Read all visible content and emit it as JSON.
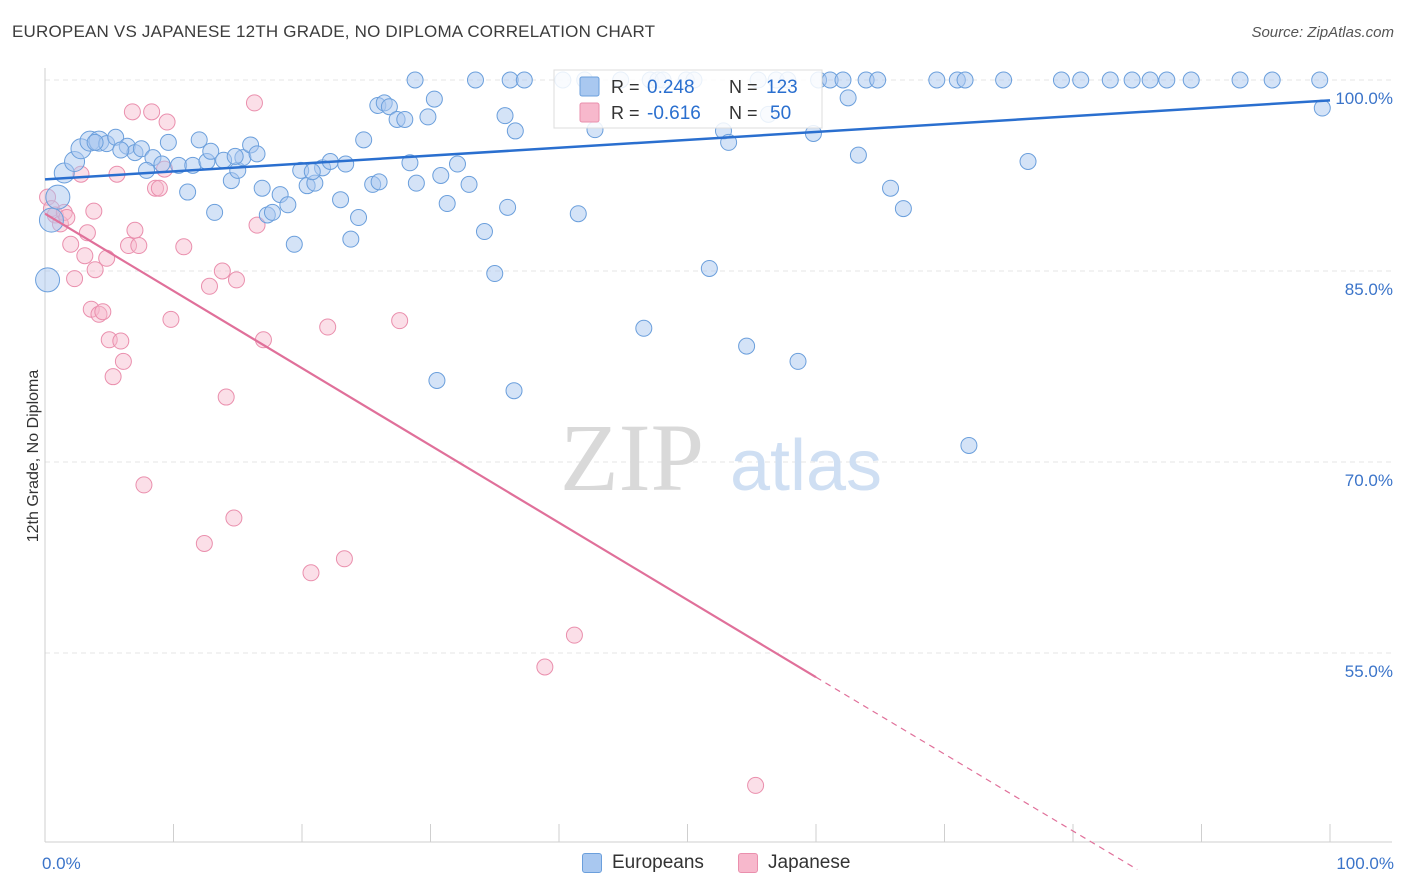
{
  "header": {
    "title": "EUROPEAN VS JAPANESE 12TH GRADE, NO DIPLOMA CORRELATION CHART",
    "source": "Source: ZipAtlas.com"
  },
  "watermark": {
    "zip": "ZIP",
    "atlas": "atlas"
  },
  "colors": {
    "blue_fill": "#a9c8f0",
    "blue_stroke": "#6b9fdc",
    "blue_line": "#2a6fcf",
    "pink_fill": "#f7b8cc",
    "pink_stroke": "#ea8fad",
    "pink_line": "#e0709a",
    "tick_label": "#3b74c9",
    "grid": "#e4e4e4"
  },
  "legend_box": {
    "rows": [
      {
        "r_label": "R =",
        "r_value": "0.248",
        "n_label": "N =",
        "n_value": "123",
        "series": "europeans"
      },
      {
        "r_label": "R =",
        "r_value": "-0.616",
        "n_label": "N =",
        "n_value": "50",
        "series": "japanese"
      }
    ]
  },
  "chart_data": {
    "type": "scatter",
    "ylabel": "12th Grade, No Diploma",
    "xlabel": "",
    "xlim": [
      0,
      100
    ],
    "ylim": [
      40,
      102
    ],
    "y_ticks": [
      {
        "value": 100,
        "label": "100.0%"
      },
      {
        "value": 85,
        "label": "85.0%"
      },
      {
        "value": 70,
        "label": "70.0%"
      },
      {
        "value": 55,
        "label": "55.0%"
      }
    ],
    "x_tick_labels": {
      "left": "0.0%",
      "right": "100.0%"
    },
    "grid": "horizontal dashed",
    "legend_placement": "top-center",
    "series": [
      {
        "name": "Europeans",
        "key": "europeans",
        "R": 0.248,
        "N": 123,
        "trend": {
          "x": [
            0,
            100
          ],
          "y": [
            92.2,
            98.4
          ]
        },
        "points": [
          [
            0.2,
            84.3
          ],
          [
            0.5,
            89.0
          ],
          [
            1.0,
            90.8
          ],
          [
            1.5,
            92.7
          ],
          [
            2.3,
            93.6
          ],
          [
            2.8,
            94.6
          ],
          [
            3.5,
            95.2
          ],
          [
            4.2,
            95.2
          ],
          [
            4.8,
            95.0
          ],
          [
            5.5,
            95.5
          ],
          [
            6.4,
            94.8
          ],
          [
            7.0,
            94.3
          ],
          [
            7.5,
            94.6
          ],
          [
            8.4,
            93.9
          ],
          [
            9.1,
            93.4
          ],
          [
            9.6,
            95.1
          ],
          [
            10.4,
            93.3
          ],
          [
            11.1,
            91.2
          ],
          [
            11.5,
            93.3
          ],
          [
            12.0,
            95.3
          ],
          [
            12.6,
            93.6
          ],
          [
            12.9,
            94.4
          ],
          [
            13.2,
            89.6
          ],
          [
            13.9,
            93.7
          ],
          [
            14.5,
            92.1
          ],
          [
            15.0,
            92.9
          ],
          [
            15.4,
            93.9
          ],
          [
            16.0,
            94.9
          ],
          [
            16.5,
            94.2
          ],
          [
            16.9,
            91.5
          ],
          [
            17.3,
            89.4
          ],
          [
            17.7,
            89.6
          ],
          [
            18.3,
            91.0
          ],
          [
            18.9,
            90.2
          ],
          [
            19.4,
            87.1
          ],
          [
            19.9,
            92.9
          ],
          [
            20.4,
            91.7
          ],
          [
            21.0,
            91.9
          ],
          [
            21.6,
            93.1
          ],
          [
            22.2,
            93.6
          ],
          [
            23.0,
            90.6
          ],
          [
            23.4,
            93.4
          ],
          [
            23.8,
            87.5
          ],
          [
            24.4,
            89.2
          ],
          [
            24.8,
            95.3
          ],
          [
            25.5,
            91.8
          ],
          [
            25.9,
            98.0
          ],
          [
            26.4,
            98.2
          ],
          [
            26.8,
            97.9
          ],
          [
            27.4,
            96.9
          ],
          [
            28.0,
            96.9
          ],
          [
            28.4,
            93.5
          ],
          [
            28.9,
            91.9
          ],
          [
            29.8,
            97.1
          ],
          [
            30.3,
            98.5
          ],
          [
            30.8,
            92.5
          ],
          [
            31.3,
            90.3
          ],
          [
            32.1,
            93.4
          ],
          [
            33.0,
            91.8
          ],
          [
            34.2,
            88.1
          ],
          [
            35.0,
            84.8
          ],
          [
            35.8,
            97.2
          ],
          [
            36.0,
            90.0
          ],
          [
            36.6,
            96.0
          ],
          [
            36.2,
            100.0
          ],
          [
            37.3,
            100.0
          ],
          [
            40.3,
            100.0
          ],
          [
            42.0,
            100.0
          ],
          [
            44.8,
            100.0
          ],
          [
            46.6,
            80.5
          ],
          [
            47.1,
            100.0
          ],
          [
            47.7,
            100.0
          ],
          [
            48.1,
            100.0
          ],
          [
            49.9,
            100.0
          ],
          [
            50.5,
            100.0
          ],
          [
            51.7,
            85.2
          ],
          [
            52.8,
            96.0
          ],
          [
            53.2,
            95.1
          ],
          [
            55.5,
            100.0
          ],
          [
            56.3,
            97.3
          ],
          [
            56.9,
            100.0
          ],
          [
            57.8,
            100.0
          ],
          [
            59.8,
            95.8
          ],
          [
            60.2,
            100.0
          ],
          [
            61.1,
            100.0
          ],
          [
            62.1,
            100.0
          ],
          [
            62.5,
            98.6
          ],
          [
            63.9,
            100.0
          ],
          [
            63.3,
            94.1
          ],
          [
            64.8,
            100.0
          ],
          [
            65.8,
            91.5
          ],
          [
            66.8,
            89.9
          ],
          [
            69.4,
            100.0
          ],
          [
            71.0,
            100.0
          ],
          [
            71.6,
            100.0
          ],
          [
            74.6,
            100.0
          ],
          [
            76.5,
            93.6
          ],
          [
            79.1,
            100.0
          ],
          [
            80.6,
            100.0
          ],
          [
            82.9,
            100.0
          ],
          [
            84.6,
            100.0
          ],
          [
            86.0,
            100.0
          ],
          [
            87.3,
            100.0
          ],
          [
            89.2,
            100.0
          ],
          [
            93.0,
            100.0
          ],
          [
            95.5,
            100.0
          ],
          [
            99.2,
            100.0
          ],
          [
            99.4,
            97.8
          ],
          [
            41.5,
            89.5
          ],
          [
            26.0,
            92.0
          ],
          [
            20.8,
            92.8
          ],
          [
            14.8,
            94.0
          ],
          [
            7.9,
            92.9
          ],
          [
            5.9,
            94.5
          ],
          [
            3.9,
            95.1
          ],
          [
            30.5,
            76.4
          ],
          [
            36.5,
            75.6
          ],
          [
            54.6,
            79.1
          ],
          [
            58.6,
            77.9
          ],
          [
            71.9,
            71.3
          ],
          [
            42.8,
            96.1
          ],
          [
            28.8,
            100.0
          ],
          [
            33.5,
            100.0
          ]
        ]
      },
      {
        "name": "Japanese",
        "key": "japanese",
        "R": -0.616,
        "N": 50,
        "trend": {
          "x": [
            0,
            60
          ],
          "y": [
            89.5,
            53.1
          ]
        },
        "trend_dashed": {
          "x": [
            60,
            85
          ],
          "y": [
            53.1,
            38.0
          ]
        },
        "points": [
          [
            0.2,
            90.8
          ],
          [
            0.5,
            89.9
          ],
          [
            0.8,
            89.4
          ],
          [
            1.2,
            88.7
          ],
          [
            1.5,
            89.6
          ],
          [
            2.0,
            87.1
          ],
          [
            2.3,
            84.4
          ],
          [
            2.8,
            92.6
          ],
          [
            3.1,
            86.2
          ],
          [
            3.3,
            88.0
          ],
          [
            3.6,
            82.0
          ],
          [
            3.9,
            85.1
          ],
          [
            4.2,
            81.6
          ],
          [
            4.5,
            81.8
          ],
          [
            4.8,
            86.0
          ],
          [
            5.0,
            79.6
          ],
          [
            5.3,
            76.7
          ],
          [
            5.6,
            92.6
          ],
          [
            5.9,
            79.5
          ],
          [
            6.1,
            77.9
          ],
          [
            6.5,
            87.0
          ],
          [
            6.8,
            97.5
          ],
          [
            7.0,
            88.2
          ],
          [
            7.3,
            87.0
          ],
          [
            7.7,
            68.2
          ],
          [
            8.3,
            97.5
          ],
          [
            8.6,
            91.5
          ],
          [
            8.9,
            91.5
          ],
          [
            9.5,
            96.7
          ],
          [
            9.8,
            81.2
          ],
          [
            10.8,
            86.9
          ],
          [
            12.4,
            63.6
          ],
          [
            12.8,
            83.8
          ],
          [
            13.8,
            85.0
          ],
          [
            14.1,
            75.1
          ],
          [
            14.7,
            65.6
          ],
          [
            14.9,
            84.3
          ],
          [
            16.3,
            98.2
          ],
          [
            16.5,
            88.6
          ],
          [
            17.0,
            79.6
          ],
          [
            20.7,
            61.3
          ],
          [
            22.0,
            80.6
          ],
          [
            23.3,
            62.4
          ],
          [
            27.6,
            81.1
          ],
          [
            41.2,
            56.4
          ],
          [
            38.9,
            53.9
          ],
          [
            55.3,
            44.6
          ],
          [
            3.8,
            89.7
          ],
          [
            1.7,
            89.2
          ],
          [
            9.3,
            93.0
          ]
        ]
      }
    ]
  }
}
